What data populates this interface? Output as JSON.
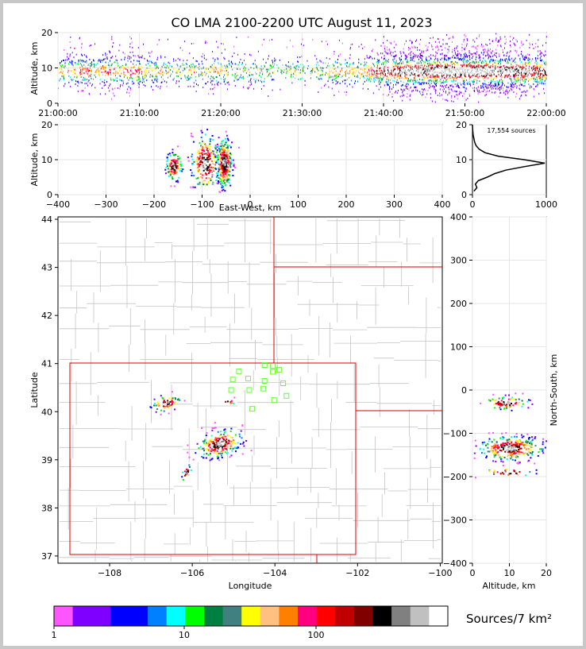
{
  "title": "CO LMA 2100-2200 UTC August 11, 2023",
  "chart_data": [
    {
      "id": "time-altitude",
      "type": "scatter",
      "ylabel": "Altitude, km",
      "xlim": [
        "21:00:00",
        "22:00:00"
      ],
      "ylim": [
        0,
        20
      ],
      "xticks": [
        "21:00:00",
        "21:10:00",
        "21:20:00",
        "21:30:00",
        "21:40:00",
        "21:50:00",
        "22:00:00"
      ],
      "yticks": [
        0,
        10,
        20
      ],
      "activity_by_minute": [
        3,
        3,
        4,
        4,
        3,
        4,
        4,
        3,
        4,
        4,
        3,
        3,
        3,
        2,
        2,
        2,
        3,
        2,
        3,
        3,
        3,
        2,
        2,
        2,
        2,
        2,
        2,
        1,
        2,
        2,
        1,
        2,
        2,
        3,
        3,
        3,
        3,
        3,
        4,
        5,
        6,
        6,
        7,
        7,
        7,
        7,
        8,
        8,
        8,
        8,
        8,
        8,
        8,
        7,
        7,
        7,
        7,
        7,
        6,
        6
      ],
      "core_altitude_km": 9
    },
    {
      "id": "ew-altitude",
      "type": "scatter",
      "xlabel": "East-West, km",
      "ylabel": "Altitude, km",
      "xlim": [
        -400,
        400
      ],
      "ylim": [
        0,
        20
      ],
      "xticks": [
        -400,
        -300,
        -200,
        -100,
        0,
        100,
        200,
        300,
        400
      ],
      "yticks": [
        0,
        10,
        20
      ],
      "clusters": [
        {
          "x": -160,
          "alt": 8,
          "sx": 8,
          "sa": 2,
          "n": 120
        },
        {
          "x": -95,
          "alt": 9,
          "sx": 14,
          "sa": 4,
          "n": 220
        },
        {
          "x": -55,
          "alt": 9,
          "sx": 8,
          "sa": 3.5,
          "n": 300
        }
      ]
    },
    {
      "id": "altitude-histogram",
      "type": "line",
      "annotation": "17,554 sources",
      "xlim": [
        0,
        1000
      ],
      "ylim": [
        0,
        20
      ],
      "xticks": [
        0,
        1000
      ],
      "yticks": [
        0,
        10,
        20
      ],
      "points": [
        [
          20,
          1
        ],
        [
          60,
          2
        ],
        [
          40,
          3
        ],
        [
          80,
          4
        ],
        [
          200,
          5
        ],
        [
          300,
          6
        ],
        [
          450,
          7
        ],
        [
          700,
          8
        ],
        [
          980,
          9
        ],
        [
          700,
          10
        ],
        [
          350,
          11
        ],
        [
          170,
          12
        ],
        [
          90,
          13
        ],
        [
          50,
          14
        ],
        [
          30,
          15
        ],
        [
          20,
          16
        ],
        [
          10,
          17
        ],
        [
          5,
          18
        ],
        [
          2,
          19
        ],
        [
          0,
          20
        ]
      ]
    },
    {
      "id": "plan-view",
      "type": "scatter",
      "xlabel": "Longitude",
      "ylabel": "Latitude",
      "xlim": [
        -109.25,
        -99.95
      ],
      "ylim": [
        36.85,
        44.05
      ],
      "xticks": [
        -108,
        -106,
        -104,
        -102,
        -100
      ],
      "xticklabels": [
        "−108",
        "−106",
        "−104",
        "−102",
        "−100"
      ],
      "yticks": [
        37,
        38,
        39,
        40,
        41,
        42,
        43,
        44
      ],
      "stations": [
        [
          -104.25,
          40.97
        ],
        [
          -104.87,
          40.84
        ],
        [
          -104.05,
          40.95
        ],
        [
          -104.05,
          40.83
        ],
        [
          -103.9,
          40.87
        ],
        [
          -105.02,
          40.67
        ],
        [
          -104.65,
          40.69
        ],
        [
          -104.25,
          40.64
        ],
        [
          -103.8,
          40.59
        ],
        [
          -105.06,
          40.45
        ],
        [
          -104.62,
          40.45
        ],
        [
          -104.28,
          40.48
        ],
        [
          -103.72,
          40.33
        ],
        [
          -104.02,
          40.24
        ],
        [
          -104.55,
          40.06
        ]
      ],
      "clusters": [
        {
          "lon": -106.65,
          "lat": 40.17,
          "slon": 0.18,
          "slat": 0.08,
          "n": 60
        },
        {
          "lon": -105.35,
          "lat": 39.33,
          "slon": 0.28,
          "slat": 0.14,
          "n": 220
        },
        {
          "lon": -106.15,
          "lat": 38.72,
          "slon": 0.06,
          "slat": 0.08,
          "n": 20
        },
        {
          "lon": -105.15,
          "lat": 40.2,
          "slon": 0.1,
          "slat": 0.04,
          "n": 10
        }
      ]
    },
    {
      "id": "altitude-north-south",
      "type": "scatter",
      "xlabel": "Altitude, km",
      "ylabel": "North-South, km",
      "xlim": [
        0,
        20
      ],
      "ylim": [
        -400,
        400
      ],
      "xticks": [
        0,
        10,
        20
      ],
      "yticks": [
        -400,
        -300,
        -200,
        -100,
        0,
        100,
        200,
        300,
        400
      ],
      "yticklabels": [
        "−400",
        "−300",
        "−200",
        "−100",
        "0",
        "100",
        "200",
        "300",
        "400"
      ],
      "clusters": [
        {
          "alt": 9,
          "ns": -30,
          "sa": 3,
          "sns": 8,
          "n": 80
        },
        {
          "alt": 10,
          "ns": -135,
          "sa": 4.5,
          "sns": 14,
          "n": 300
        },
        {
          "alt": 10,
          "ns": -190,
          "sa": 4,
          "sns": 6,
          "n": 30
        }
      ]
    }
  ],
  "colorbar": {
    "label": "Sources/7 km²",
    "ticks": [
      "1",
      "10",
      "100"
    ],
    "colors": [
      "#ff55ff",
      "#8000ff",
      "#8000ff",
      "#0000ff",
      "#0000ff",
      "#0080ff",
      "#00ffff",
      "#00ff00",
      "#008040",
      "#408080",
      "#ffff00",
      "#ffc080",
      "#ff8000",
      "#ff0080",
      "#ff0000",
      "#c00000",
      "#800000",
      "#000000",
      "#808080",
      "#c0c0c0",
      "#ffffff"
    ]
  }
}
